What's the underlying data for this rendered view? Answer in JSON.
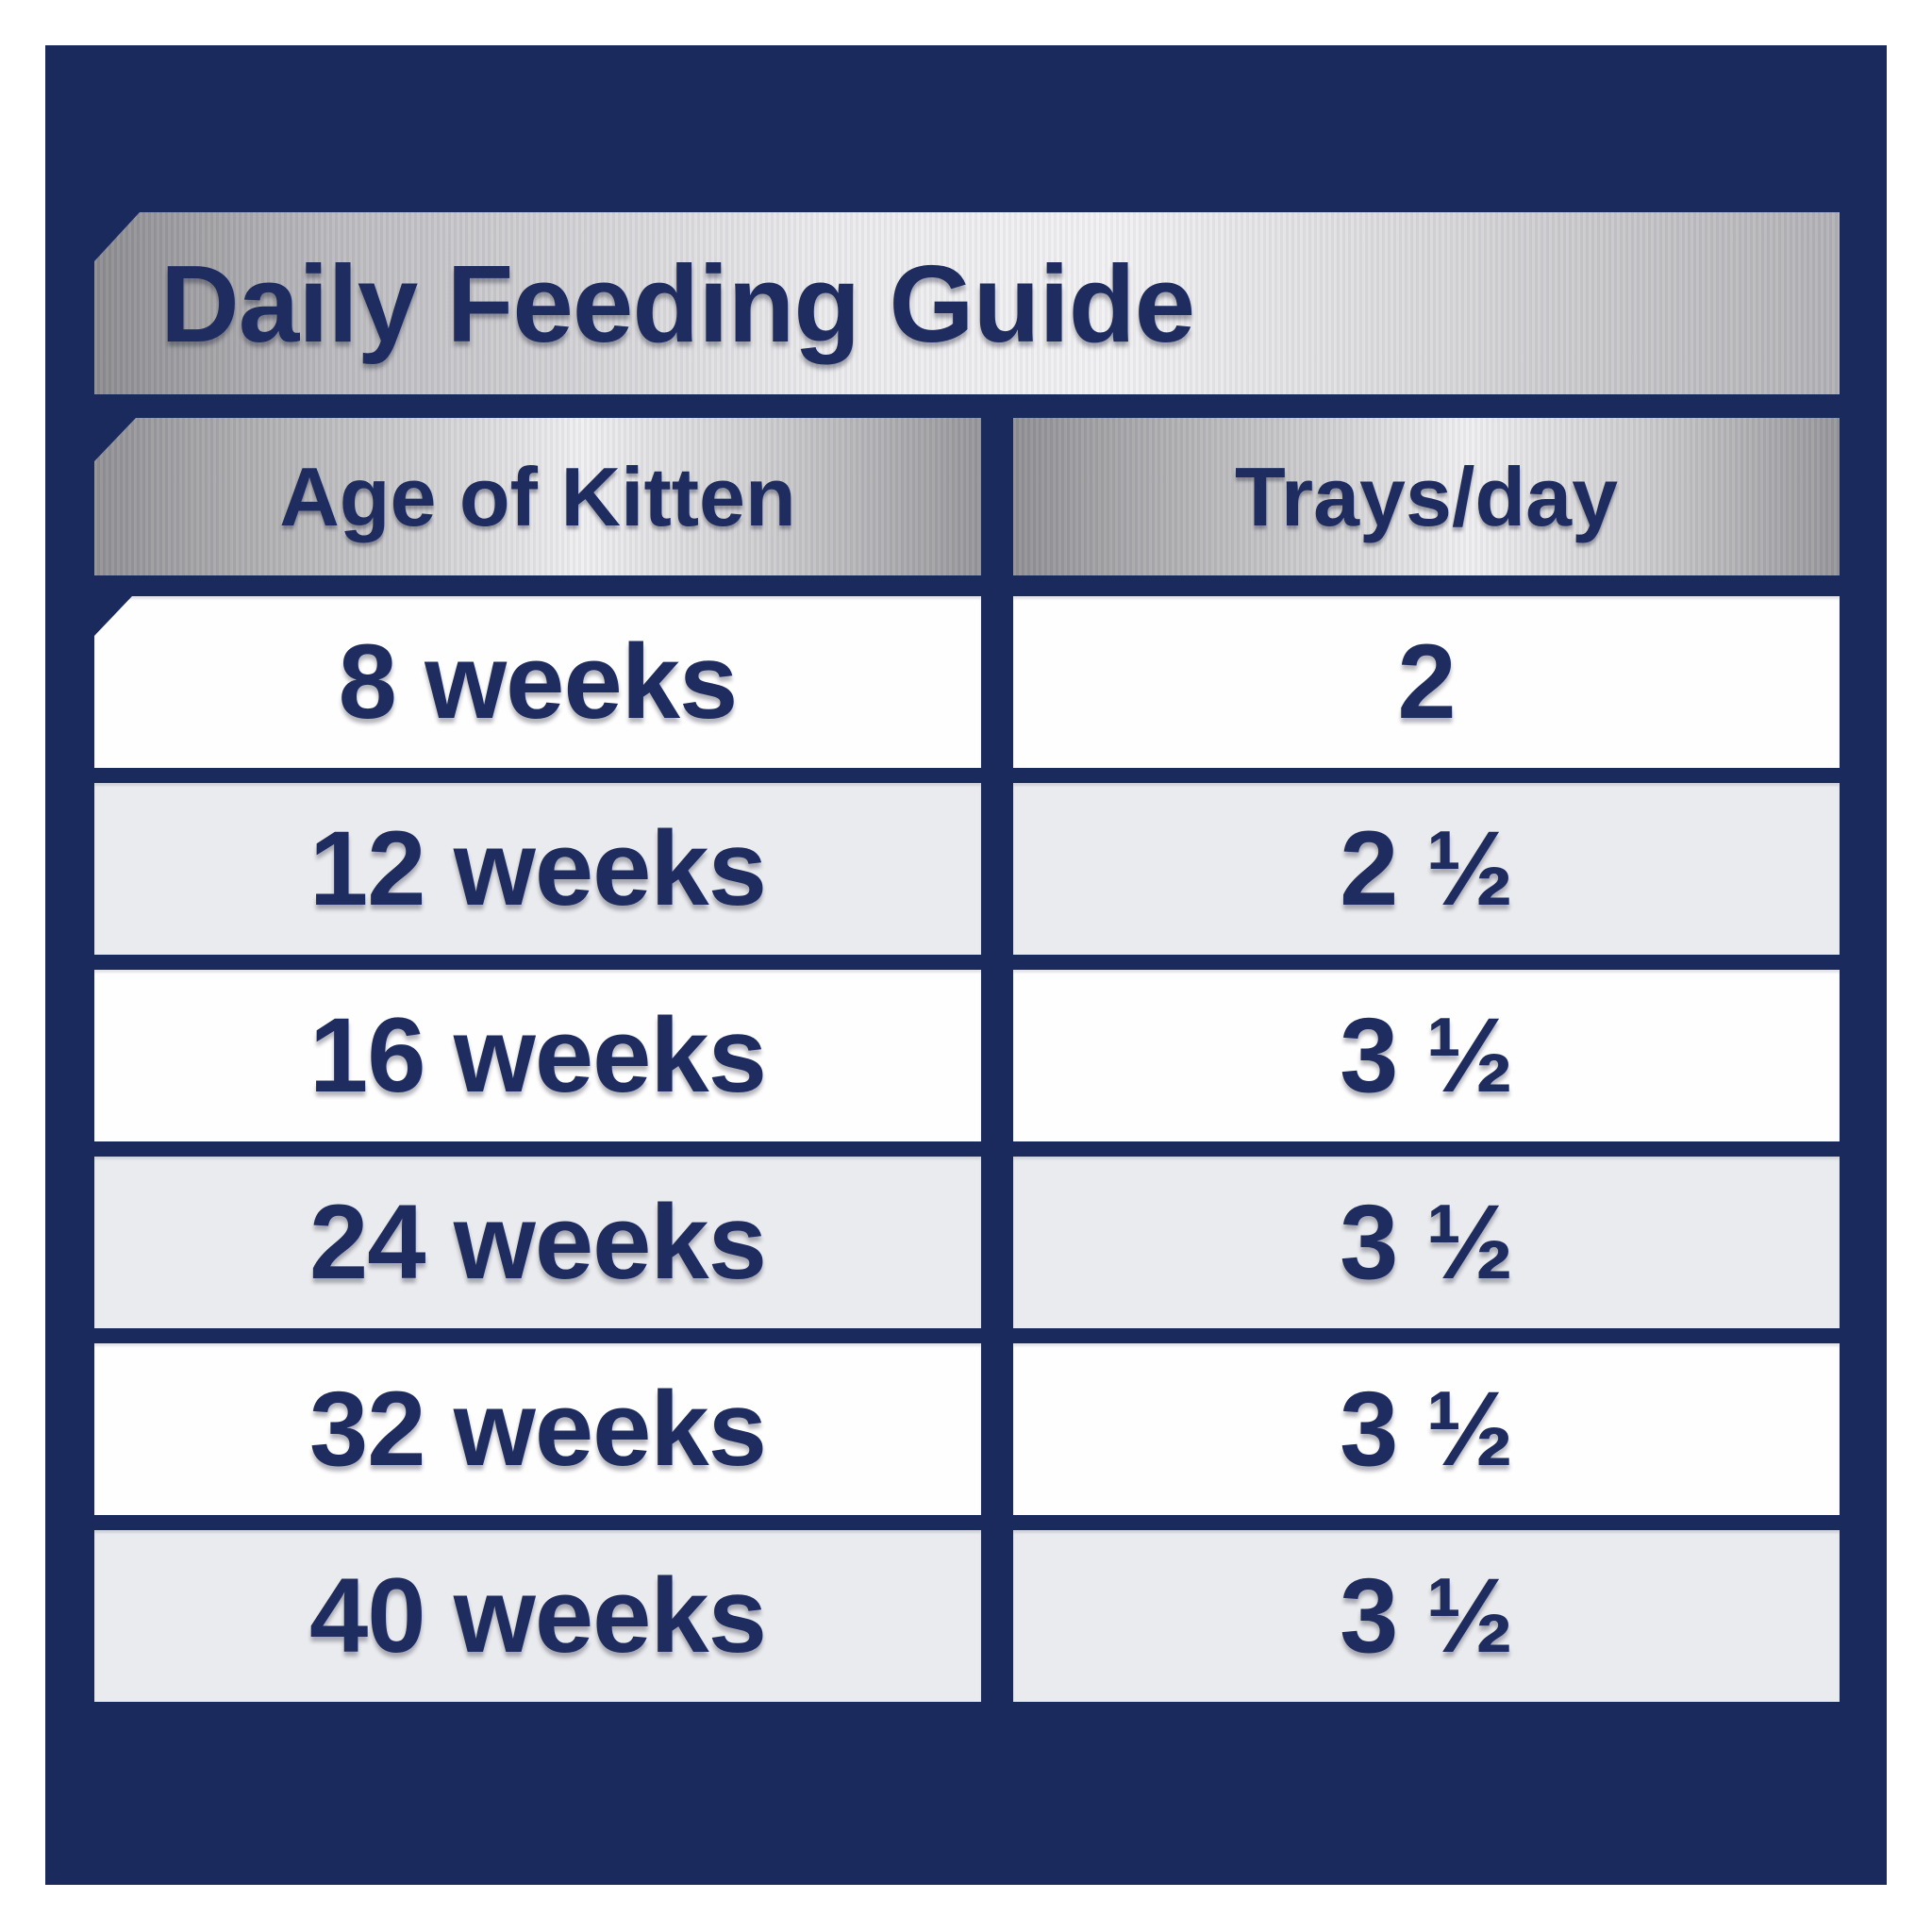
{
  "chart_data": {
    "type": "table",
    "title": "Daily Feeding Guide",
    "columns": [
      "Age of Kitten",
      "Trays/day"
    ],
    "rows": [
      [
        "8 weeks",
        "2"
      ],
      [
        "12 weeks",
        "2 ½"
      ],
      [
        "16 weeks",
        "3 ½"
      ],
      [
        "24 weeks",
        "3 ½"
      ],
      [
        "32 weeks",
        "3 ½"
      ],
      [
        "40 weeks",
        "3 ½"
      ]
    ]
  },
  "colors": {
    "panel_navy": "#1b2a5c",
    "text_navy": "#1e2c5f",
    "frame_white": "#ffffff",
    "row_white": "#fefefe",
    "row_gray": "#eaebee",
    "silver_light": "#f1f1f3",
    "silver_dark": "#8d8d91"
  }
}
